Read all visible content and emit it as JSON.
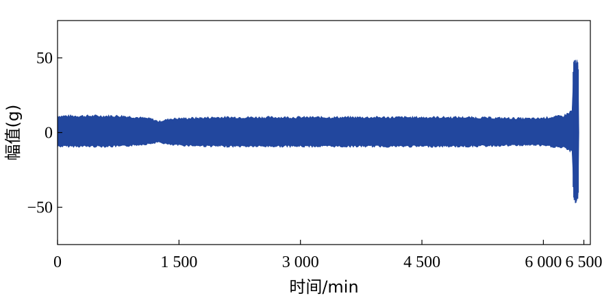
{
  "chart_data": {
    "type": "line",
    "title": "",
    "xlabel": "时间/min",
    "ylabel": "幅值(g)",
    "xlim": [
      0,
      6580
    ],
    "ylim": [
      -75,
      75
    ],
    "x_ticks": [
      0,
      1500,
      3000,
      4500,
      6000,
      6500
    ],
    "x_tick_labels": [
      "0",
      "1 500",
      "3 000",
      "4 500",
      "6 000",
      "6 500"
    ],
    "y_ticks": [
      50,
      0,
      -50
    ],
    "y_tick_labels": [
      "50",
      "0",
      "−50"
    ],
    "grid": false,
    "legend": "none",
    "series": [
      {
        "color": "#22479e",
        "kind": "vibration-envelope",
        "envelope": [
          {
            "x": 0,
            "upper": 12,
            "lower": -10
          },
          {
            "x": 300,
            "upper": 12,
            "lower": -10
          },
          {
            "x": 800,
            "upper": 12,
            "lower": -10
          },
          {
            "x": 1150,
            "upper": 10,
            "lower": -8
          },
          {
            "x": 1250,
            "upper": 8,
            "lower": -7
          },
          {
            "x": 1400,
            "upper": 10,
            "lower": -9
          },
          {
            "x": 2000,
            "upper": 11,
            "lower": -10
          },
          {
            "x": 3000,
            "upper": 11,
            "lower": -10
          },
          {
            "x": 4000,
            "upper": 11,
            "lower": -10
          },
          {
            "x": 5000,
            "upper": 11,
            "lower": -10
          },
          {
            "x": 5900,
            "upper": 10,
            "lower": -9
          },
          {
            "x": 6250,
            "upper": 12,
            "lower": -11
          },
          {
            "x": 6360,
            "upper": 16,
            "lower": -14
          },
          {
            "x": 6370,
            "upper": 48,
            "lower": -45
          },
          {
            "x": 6400,
            "upper": 50,
            "lower": -48
          },
          {
            "x": 6430,
            "upper": 48,
            "lower": -46
          },
          {
            "x": 6440,
            "upper": 0,
            "lower": 0
          }
        ]
      }
    ]
  }
}
